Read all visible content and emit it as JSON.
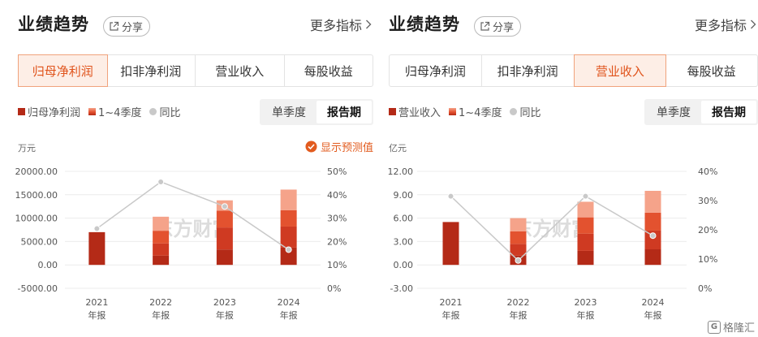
{
  "panels": [
    {
      "title": "业绩趋势",
      "share_label": "分享",
      "more_label": "更多指标",
      "tabs": [
        "归母净利润",
        "扣非净利润",
        "营业收入",
        "每股收益"
      ],
      "active_tab": 0,
      "legend": [
        "归母净利润",
        "1~4季度",
        "同比"
      ],
      "period_options": [
        "单季度",
        "报告期"
      ],
      "active_period": 1,
      "unit": "万元",
      "forecast_label": "显示预测值",
      "watermark": "东方财富",
      "y_left_ticks": [
        "20000.00",
        "15000.00",
        "10000.00",
        "5000.00",
        "0.00",
        "-5000.00"
      ],
      "y_right_ticks": [
        "50%",
        "40%",
        "30%",
        "20%",
        "10%",
        "0%"
      ],
      "x_labels": [
        [
          "2021",
          "年报"
        ],
        [
          "2022",
          "年报"
        ],
        [
          "2023",
          "年报"
        ],
        [
          "2024",
          "年报"
        ]
      ]
    },
    {
      "title": "业绩趋势",
      "share_label": "分享",
      "more_label": "更多指标",
      "tabs": [
        "归母净利润",
        "扣非净利润",
        "营业收入",
        "每股收益"
      ],
      "active_tab": 2,
      "legend": [
        "营业收入",
        "1~4季度",
        "同比"
      ],
      "period_options": [
        "单季度",
        "报告期"
      ],
      "active_period": 1,
      "unit": "亿元",
      "forecast_label": "",
      "watermark": "东方财富",
      "y_left_ticks": [
        "12.00",
        "9.00",
        "6.00",
        "3.00",
        "0.00",
        "-3.00"
      ],
      "y_right_ticks": [
        "40%",
        "30%",
        "20%",
        "10%",
        "0%"
      ],
      "x_labels": [
        [
          "2021",
          "年报"
        ],
        [
          "2022",
          "年报"
        ],
        [
          "2023",
          "年报"
        ],
        [
          "2024",
          "年报"
        ]
      ]
    }
  ],
  "corner_logo": "格隆汇",
  "colors": {
    "accent": "#e0531b",
    "bar_dark": "#b42a17",
    "bar_q2": "#cf3a22",
    "bar_q3": "#e3522f",
    "bar_q4": "#f5a38a",
    "yoy_line": "#c9c9c9"
  },
  "chart_data": [
    {
      "type": "bar",
      "categories": [
        "2021年报",
        "2022年报",
        "2023年报",
        "2024年报"
      ],
      "stacked": true,
      "y_left_range": [
        -5000,
        20000
      ],
      "y_right_range": [
        0,
        50
      ],
      "series": [
        {
          "name": "归母净利润",
          "values": [
            7000,
            null,
            null,
            null
          ]
        },
        {
          "name": "1~4季度",
          "quarters": [
            [
              null,
              null,
              null,
              null
            ],
            [
              2000,
              2600,
              2700,
              3000
            ],
            [
              3300,
              4700,
              3600,
              2200
            ],
            [
              3700,
              4500,
              3500,
              4400
            ]
          ]
        },
        {
          "name": "同比",
          "axis": "right",
          "values": [
            25.5,
            45.5,
            35,
            16.5
          ]
        }
      ]
    },
    {
      "type": "bar",
      "categories": [
        "2021年报",
        "2022年报",
        "2023年报",
        "2024年报"
      ],
      "stacked": true,
      "y_left_range": [
        -3,
        12
      ],
      "y_right_range": [
        0,
        40
      ],
      "series": [
        {
          "name": "营业收入",
          "values": [
            5.5,
            null,
            null,
            null
          ]
        },
        {
          "name": "1~4季度",
          "quarters": [
            [
              null,
              null,
              null,
              null
            ],
            [
              1.2,
              1.5,
              1.6,
              1.7
            ],
            [
              1.8,
              2.2,
              2.1,
              2.0
            ],
            [
              2.0,
              2.4,
              2.3,
              2.8
            ]
          ]
        },
        {
          "name": "同比",
          "axis": "right",
          "values": [
            31.5,
            9.5,
            31.5,
            18
          ]
        }
      ]
    }
  ]
}
